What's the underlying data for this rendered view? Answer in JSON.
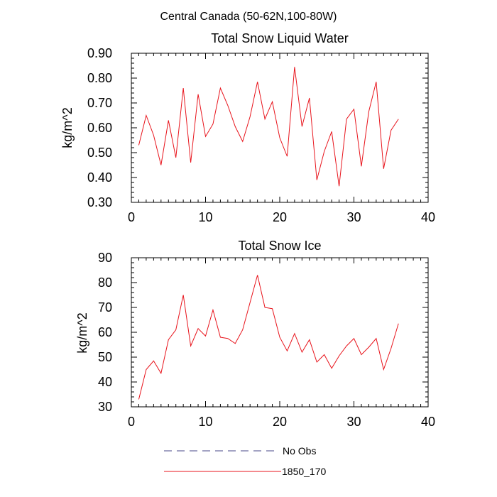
{
  "figure": {
    "title": "Central Canada (50-62N,100-80W)"
  },
  "legend": {
    "items": [
      {
        "label": "No Obs",
        "color": "#4a4a8a",
        "dash": true
      },
      {
        "label": "1850_170",
        "color": "#e8141c",
        "dash": false
      }
    ]
  },
  "chart_data": [
    {
      "type": "line",
      "title": "Total Snow Liquid Water",
      "xlabel": "",
      "ylabel": "kg/m^2",
      "xlim": [
        0,
        40
      ],
      "ylim": [
        0.3,
        0.9
      ],
      "xticks": [
        0,
        10,
        20,
        30,
        40
      ],
      "yticks": [
        0.3,
        0.4,
        0.5,
        0.6,
        0.7,
        0.8,
        0.9
      ],
      "ytick_labels": [
        "0.30",
        "0.40",
        "0.50",
        "0.60",
        "0.70",
        "0.80",
        "0.90"
      ],
      "grid": false,
      "series": [
        {
          "name": "1850_170",
          "color": "#e8141c",
          "x": [
            1,
            2,
            3,
            4,
            5,
            6,
            7,
            8,
            9,
            10,
            11,
            12,
            13,
            14,
            15,
            16,
            17,
            18,
            19,
            20,
            21,
            22,
            23,
            24,
            25,
            26,
            27,
            28,
            29,
            30,
            31,
            32,
            33,
            34,
            35,
            36
          ],
          "values": [
            0.53,
            0.65,
            0.57,
            0.45,
            0.63,
            0.48,
            0.76,
            0.46,
            0.735,
            0.565,
            0.615,
            0.76,
            0.69,
            0.605,
            0.545,
            0.645,
            0.785,
            0.635,
            0.705,
            0.56,
            0.485,
            0.845,
            0.605,
            0.72,
            0.39,
            0.505,
            0.585,
            0.365,
            0.635,
            0.675,
            0.445,
            0.665,
            0.785,
            0.435,
            0.59,
            0.635
          ]
        }
      ]
    },
    {
      "type": "line",
      "title": "Total Snow Ice",
      "xlabel": "",
      "ylabel": "kg/m^2",
      "xlim": [
        0,
        40
      ],
      "ylim": [
        30,
        90
      ],
      "xticks": [
        0,
        10,
        20,
        30,
        40
      ],
      "yticks": [
        30,
        40,
        50,
        60,
        70,
        80,
        90
      ],
      "ytick_labels": [
        "30",
        "40",
        "50",
        "60",
        "70",
        "80",
        "90"
      ],
      "grid": false,
      "series": [
        {
          "name": "1850_170",
          "color": "#e8141c",
          "x": [
            1,
            2,
            3,
            4,
            5,
            6,
            7,
            8,
            9,
            10,
            11,
            12,
            13,
            14,
            15,
            16,
            17,
            18,
            19,
            20,
            21,
            22,
            23,
            24,
            25,
            26,
            27,
            28,
            29,
            30,
            31,
            32,
            33,
            34,
            35,
            36
          ],
          "values": [
            33,
            45,
            48.5,
            43.5,
            57,
            61,
            75,
            54.5,
            61.5,
            58.5,
            69,
            58,
            57.5,
            55.5,
            61,
            72,
            83,
            70,
            69.5,
            58,
            52.5,
            59.5,
            52,
            57,
            48,
            51,
            45.5,
            50.5,
            54.5,
            57.5,
            51,
            54,
            57.5,
            45,
            53.5,
            63.5
          ]
        }
      ]
    }
  ]
}
